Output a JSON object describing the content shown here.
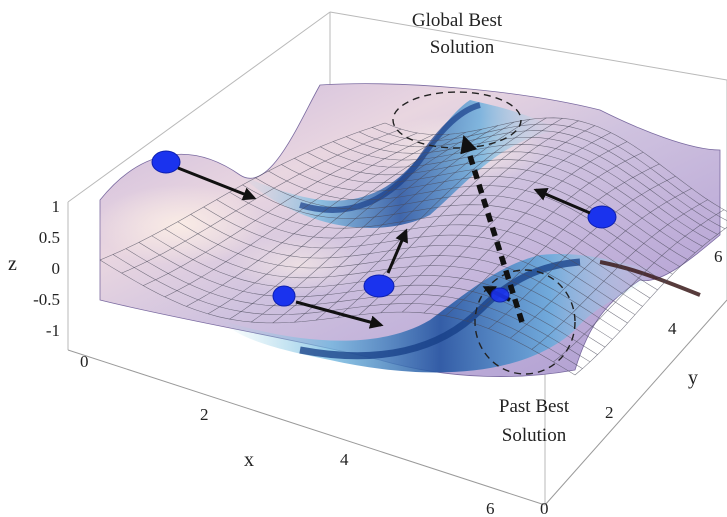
{
  "figure": {
    "annotations": {
      "global_best_line1": "Global Best",
      "global_best_line2": "Solution",
      "past_best_line1": "Past Best",
      "past_best_line2": "Solution"
    },
    "axes": {
      "x": {
        "label": "x",
        "ticks": [
          "0",
          "2",
          "4",
          "6"
        ]
      },
      "y": {
        "label": "y",
        "ticks": [
          "0",
          "2",
          "4",
          "6"
        ]
      },
      "z": {
        "label": "z",
        "ticks": [
          "1",
          "0.5",
          "0",
          "-0.5",
          "-1"
        ]
      }
    },
    "colors": {
      "surface_high": "#f6e6e0",
      "surface_mid": "#c0aed8",
      "surface_low": "#4f8fd8",
      "surface_valley": "#1c4f9e",
      "particle": "#1a33ee",
      "arrow": "#111111"
    },
    "particle_count": 5
  }
}
